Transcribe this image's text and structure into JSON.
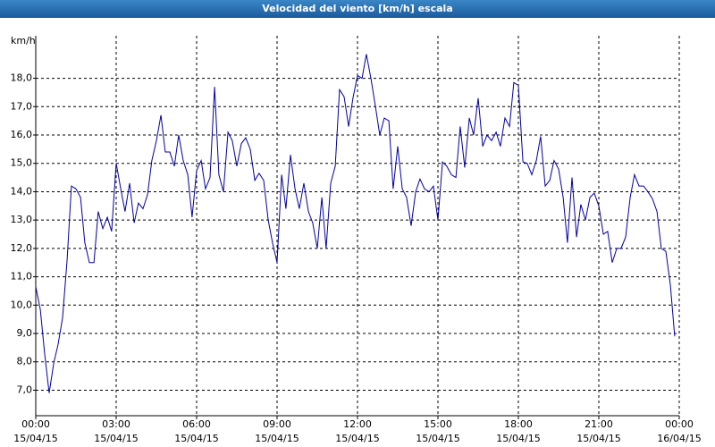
{
  "chart_data": {
    "type": "line",
    "title": "Velocidad del viento [km/h] escala",
    "y_unit": "km/h",
    "x": [
      0,
      0.17,
      0.33,
      0.5,
      0.67,
      0.83,
      1,
      1.17,
      1.33,
      1.5,
      1.67,
      1.83,
      2,
      2.17,
      2.33,
      2.5,
      2.67,
      2.83,
      3,
      3.17,
      3.33,
      3.5,
      3.67,
      3.83,
      4,
      4.17,
      4.33,
      4.5,
      4.67,
      4.83,
      5,
      5.17,
      5.33,
      5.5,
      5.67,
      5.83,
      6,
      6.17,
      6.33,
      6.5,
      6.67,
      6.83,
      7,
      7.17,
      7.33,
      7.5,
      7.67,
      7.83,
      8,
      8.17,
      8.33,
      8.5,
      8.67,
      8.83,
      9,
      9.17,
      9.33,
      9.5,
      9.67,
      9.83,
      10,
      10.17,
      10.33,
      10.5,
      10.67,
      10.83,
      11,
      11.17,
      11.33,
      11.5,
      11.67,
      11.83,
      12,
      12.17,
      12.33,
      12.5,
      12.67,
      12.83,
      13,
      13.17,
      13.33,
      13.5,
      13.67,
      13.83,
      14,
      14.17,
      14.33,
      14.5,
      14.67,
      14.83,
      15,
      15.17,
      15.33,
      15.5,
      15.67,
      15.83,
      16,
      16.17,
      16.33,
      16.5,
      16.67,
      16.83,
      17,
      17.17,
      17.33,
      17.5,
      17.67,
      17.83,
      18,
      18.17,
      18.33,
      18.5,
      18.67,
      18.83,
      19,
      19.17,
      19.33,
      19.5,
      19.67,
      19.83,
      20,
      20.17,
      20.33,
      20.5,
      20.67,
      20.83,
      21,
      21.17,
      21.33,
      21.5,
      21.67,
      21.83,
      22,
      22.17,
      22.33,
      22.5,
      22.67,
      22.83,
      23,
      23.17,
      23.33,
      23.5,
      23.67,
      23.83
    ],
    "series": [
      {
        "name": "Velocidad del viento",
        "color": "#0000a0",
        "values": [
          10.65,
          9.85,
          8.3,
          6.9,
          7.95,
          8.6,
          9.55,
          11.6,
          14.2,
          14.1,
          13.8,
          12.2,
          11.5,
          11.5,
          13.3,
          12.7,
          13.1,
          12.6,
          15.0,
          14.1,
          13.3,
          14.3,
          12.9,
          13.6,
          13.4,
          13.9,
          15.1,
          15.8,
          16.7,
          15.4,
          15.4,
          14.9,
          16.0,
          15.1,
          14.6,
          13.1,
          14.75,
          15.1,
          14.1,
          14.5,
          17.7,
          14.6,
          14.0,
          16.1,
          15.8,
          14.9,
          15.7,
          15.9,
          15.5,
          14.4,
          14.65,
          14.4,
          13.0,
          12.2,
          11.5,
          14.6,
          13.4,
          15.3,
          14.1,
          13.4,
          14.3,
          13.3,
          12.9,
          12.0,
          13.8,
          12.0,
          14.3,
          14.9,
          17.6,
          17.35,
          16.3,
          17.3,
          18.1,
          18.0,
          18.85,
          18.0,
          17.0,
          16.0,
          16.6,
          16.5,
          14.1,
          15.6,
          14.1,
          13.8,
          12.8,
          14.0,
          14.45,
          14.1,
          14.0,
          14.2,
          13.0,
          15.05,
          14.9,
          14.6,
          14.5,
          16.3,
          14.85,
          16.6,
          16.0,
          17.3,
          15.6,
          16.0,
          15.8,
          16.1,
          15.6,
          16.6,
          16.3,
          17.85,
          17.75,
          15.05,
          15.0,
          14.6,
          15.1,
          15.95,
          14.2,
          14.4,
          15.1,
          14.8,
          13.8,
          12.2,
          14.5,
          12.4,
          13.55,
          13.0,
          13.8,
          13.95,
          13.5,
          12.5,
          12.6,
          11.5,
          12.0,
          12.0,
          12.4,
          13.8,
          14.6,
          14.2,
          14.2,
          14.0,
          13.75,
          13.3,
          12.0,
          11.9,
          10.7,
          8.9
        ]
      }
    ],
    "xlim": [
      0,
      24
    ],
    "xticks": [
      {
        "value": 0,
        "label": "00:00",
        "date": "15/04/15"
      },
      {
        "value": 3,
        "label": "03:00",
        "date": "15/04/15"
      },
      {
        "value": 6,
        "label": "06:00",
        "date": "15/04/15"
      },
      {
        "value": 9,
        "label": "09:00",
        "date": "15/04/15"
      },
      {
        "value": 12,
        "label": "12:00",
        "date": "15/04/15"
      },
      {
        "value": 15,
        "label": "15:00",
        "date": "15/04/15"
      },
      {
        "value": 18,
        "label": "18:00",
        "date": "15/04/15"
      },
      {
        "value": 21,
        "label": "21:00",
        "date": "15/04/15"
      },
      {
        "value": 24,
        "label": "00:00",
        "date": "16/04/15"
      }
    ],
    "ylim": [
      6.1,
      19.5
    ],
    "yticks": [
      {
        "value": 7,
        "label": "7,0"
      },
      {
        "value": 8,
        "label": "8,0"
      },
      {
        "value": 9,
        "label": "9,0"
      },
      {
        "value": 10,
        "label": "10,0"
      },
      {
        "value": 11,
        "label": "11,0"
      },
      {
        "value": 12,
        "label": "12,0"
      },
      {
        "value": 13,
        "label": "13,0"
      },
      {
        "value": 14,
        "label": "14,0"
      },
      {
        "value": 15,
        "label": "15,0"
      },
      {
        "value": 16,
        "label": "16,0"
      },
      {
        "value": 17,
        "label": "17,0"
      },
      {
        "value": 18,
        "label": "18,0"
      }
    ],
    "grid": true
  }
}
